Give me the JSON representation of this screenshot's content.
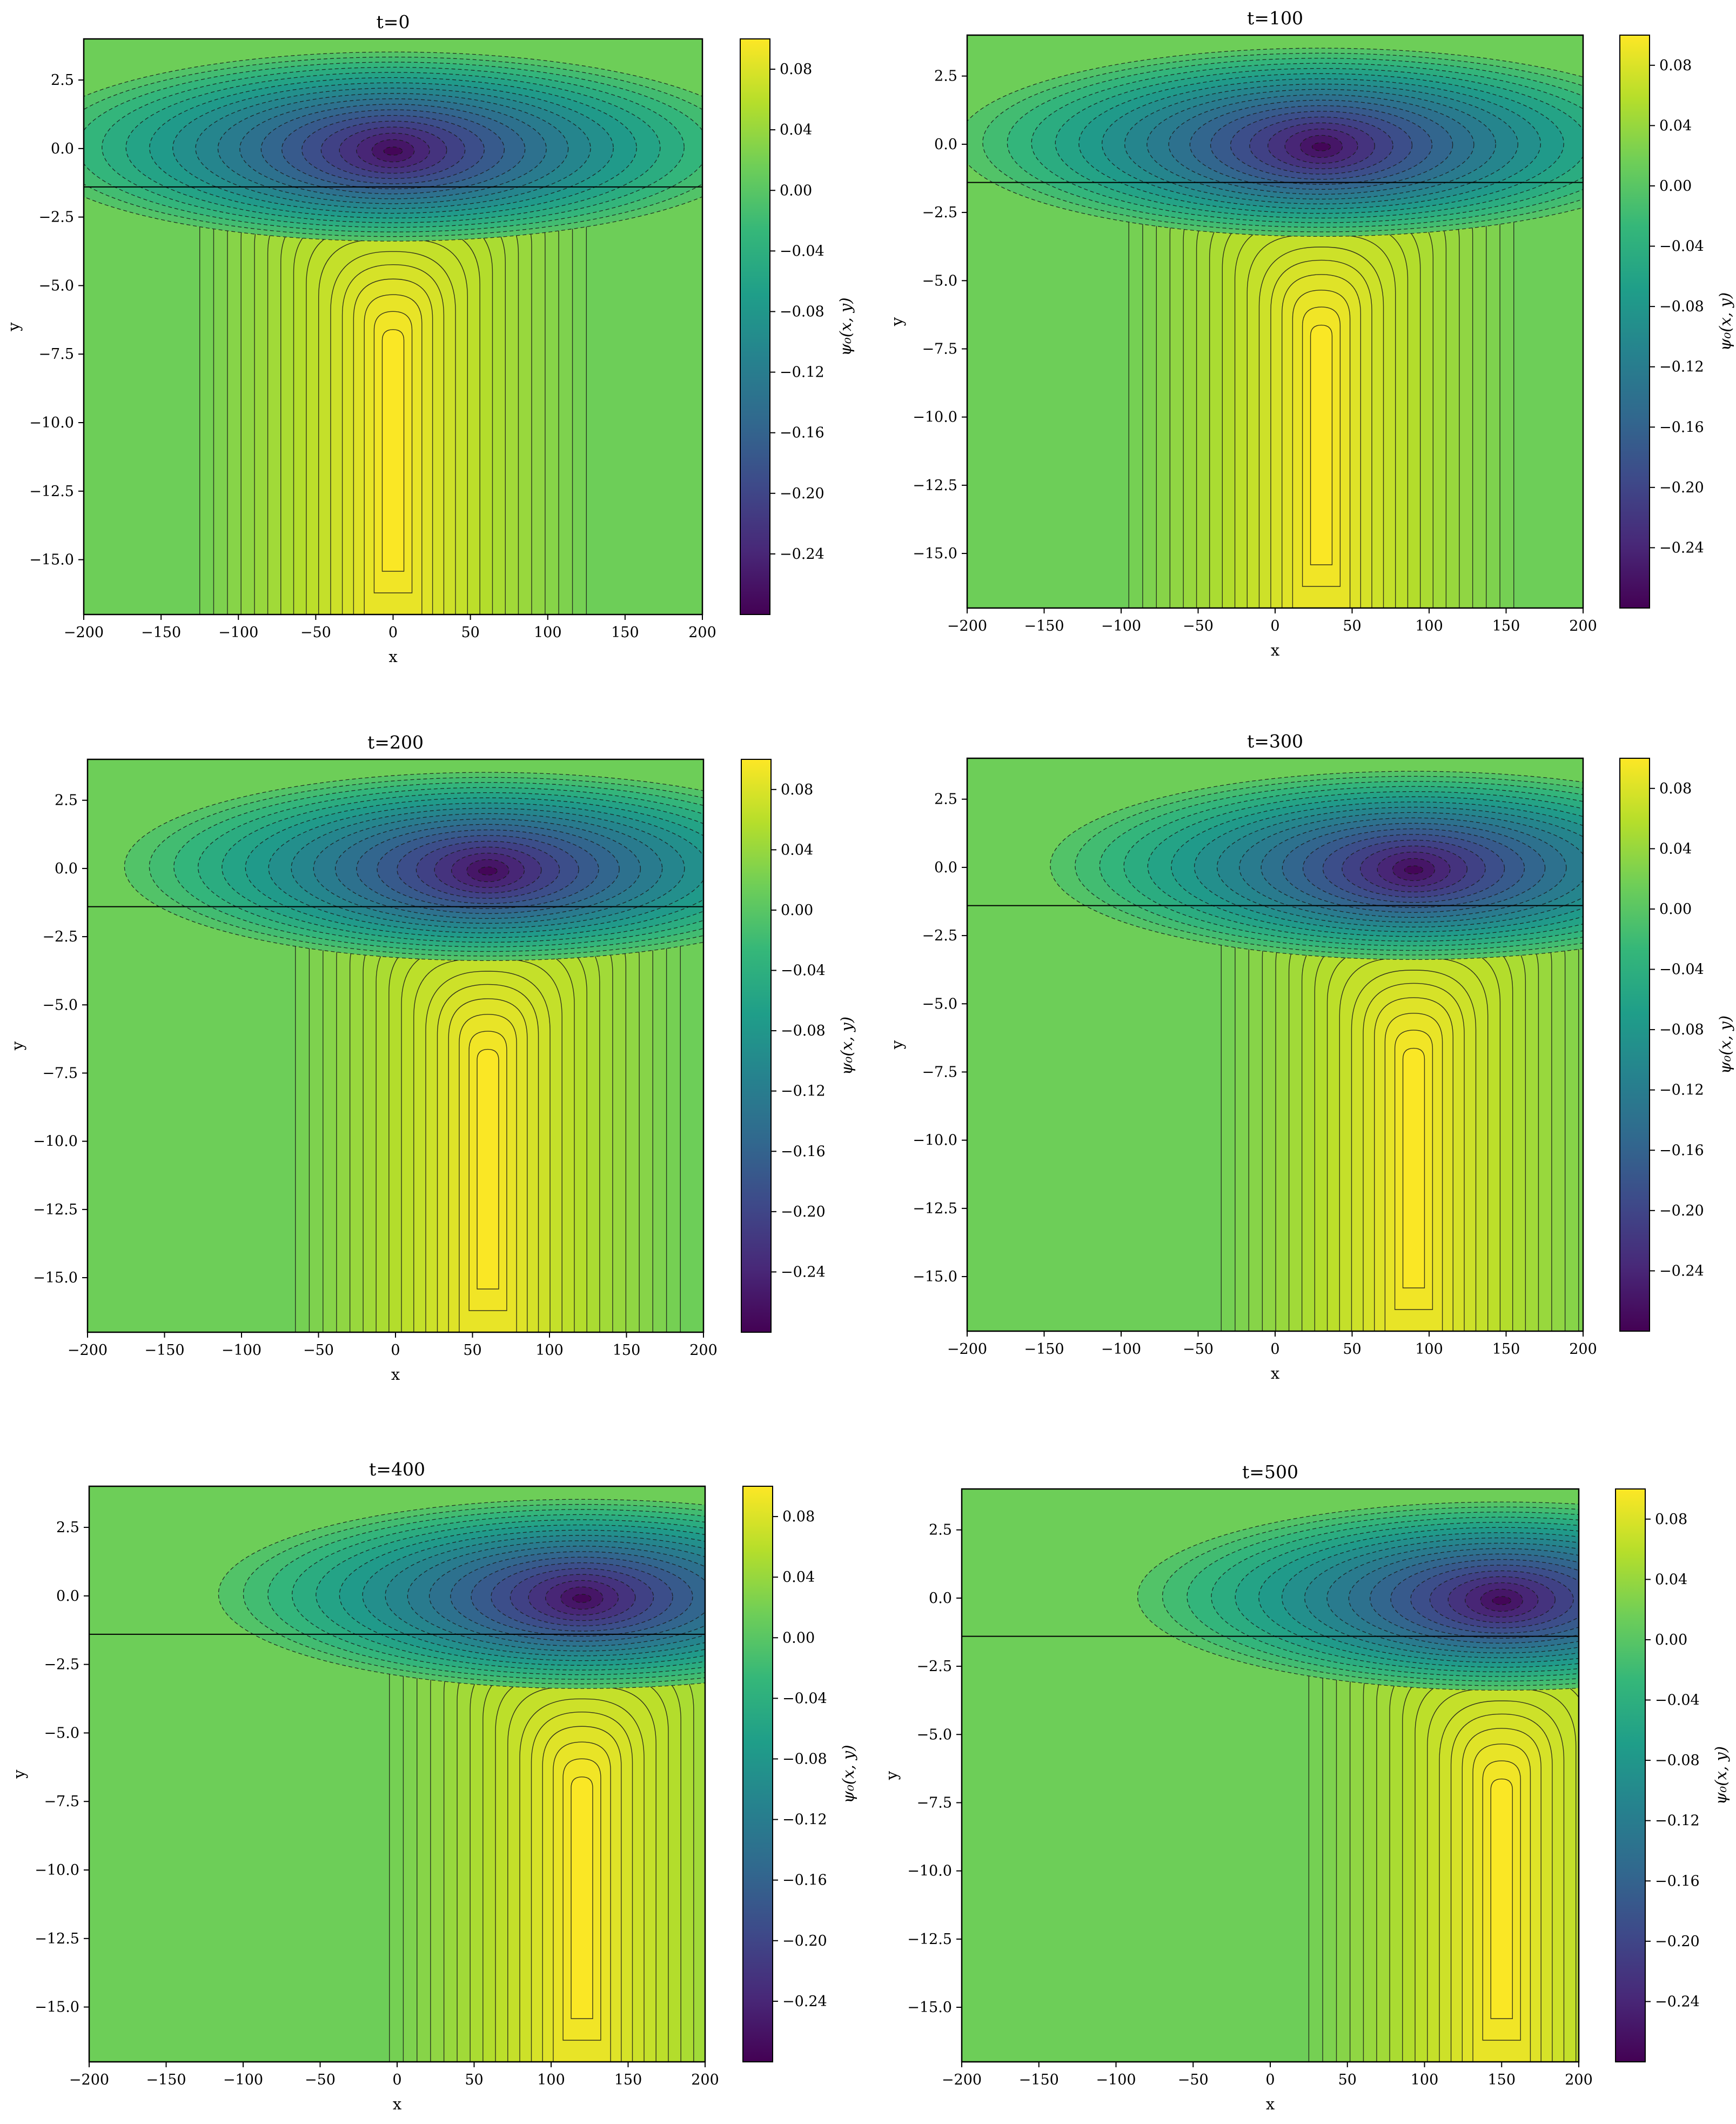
{
  "chart_data": [
    {
      "type": "heatmap",
      "title": "t=0",
      "xlabel": "x",
      "ylabel": "y",
      "xlim": [
        -200,
        200
      ],
      "ylim": [
        -17,
        4
      ],
      "xticks": [
        -200,
        -150,
        -100,
        -50,
        0,
        50,
        100,
        150,
        200
      ],
      "yticks": [
        2.5,
        0.0,
        -2.5,
        -5.0,
        -7.5,
        -10.0,
        -12.5,
        -15.0
      ],
      "center_x": 0,
      "interface_y": -1.4,
      "colorbar": {
        "label": "ψ₀(x, y)",
        "range": [
          -0.28,
          0.1
        ],
        "ticks": [
          0.08,
          0.04,
          0.0,
          -0.04,
          -0.08,
          -0.12,
          -0.16,
          -0.2,
          -0.24
        ]
      }
    },
    {
      "type": "heatmap",
      "title": "t=100",
      "xlabel": "x",
      "ylabel": "y",
      "xlim": [
        -200,
        200
      ],
      "ylim": [
        -17,
        4
      ],
      "xticks": [
        -200,
        -150,
        -100,
        -50,
        0,
        50,
        100,
        150,
        200
      ],
      "yticks": [
        2.5,
        0.0,
        -2.5,
        -5.0,
        -7.5,
        -10.0,
        -12.5,
        -15.0
      ],
      "center_x": 30,
      "interface_y": -1.4,
      "colorbar": {
        "label": "ψ₀(x, y)",
        "range": [
          -0.28,
          0.1
        ],
        "ticks": [
          0.08,
          0.04,
          0.0,
          -0.04,
          -0.08,
          -0.12,
          -0.16,
          -0.2,
          -0.24
        ]
      }
    },
    {
      "type": "heatmap",
      "title": "t=200",
      "xlabel": "x",
      "ylabel": "y",
      "xlim": [
        -200,
        200
      ],
      "ylim": [
        -17,
        4
      ],
      "xticks": [
        -200,
        -150,
        -100,
        -50,
        0,
        50,
        100,
        150,
        200
      ],
      "yticks": [
        2.5,
        0.0,
        -2.5,
        -5.0,
        -7.5,
        -10.0,
        -12.5,
        -15.0
      ],
      "center_x": 60,
      "interface_y": -1.4,
      "colorbar": {
        "label": "ψ₀(x, y)",
        "range": [
          -0.28,
          0.1
        ],
        "ticks": [
          0.08,
          0.04,
          0.0,
          -0.04,
          -0.08,
          -0.12,
          -0.16,
          -0.2,
          -0.24
        ]
      }
    },
    {
      "type": "heatmap",
      "title": "t=300",
      "xlabel": "x",
      "ylabel": "y",
      "xlim": [
        -200,
        200
      ],
      "ylim": [
        -17,
        4
      ],
      "xticks": [
        -200,
        -150,
        -100,
        -50,
        0,
        50,
        100,
        150,
        200
      ],
      "yticks": [
        2.5,
        0.0,
        -2.5,
        -5.0,
        -7.5,
        -10.0,
        -12.5,
        -15.0
      ],
      "center_x": 90,
      "interface_y": -1.4,
      "colorbar": {
        "label": "ψ₀(x, y)",
        "range": [
          -0.28,
          0.1
        ],
        "ticks": [
          0.08,
          0.04,
          0.0,
          -0.04,
          -0.08,
          -0.12,
          -0.16,
          -0.2,
          -0.24
        ]
      }
    },
    {
      "type": "heatmap",
      "title": "t=400",
      "xlabel": "x",
      "ylabel": "y",
      "xlim": [
        -200,
        200
      ],
      "ylim": [
        -17,
        4
      ],
      "xticks": [
        -200,
        -150,
        -100,
        -50,
        0,
        50,
        100,
        150,
        200
      ],
      "yticks": [
        2.5,
        0.0,
        -2.5,
        -5.0,
        -7.5,
        -10.0,
        -12.5,
        -15.0
      ],
      "center_x": 120,
      "interface_y": -1.4,
      "colorbar": {
        "label": "ψ₀(x, y)",
        "range": [
          -0.28,
          0.1
        ],
        "ticks": [
          0.08,
          0.04,
          0.0,
          -0.04,
          -0.08,
          -0.12,
          -0.16,
          -0.2,
          -0.24
        ]
      }
    },
    {
      "type": "heatmap",
      "title": "t=500",
      "xlabel": "x",
      "ylabel": "y",
      "xlim": [
        -200,
        200
      ],
      "ylim": [
        -17,
        4
      ],
      "xticks": [
        -200,
        -150,
        -100,
        -50,
        0,
        50,
        100,
        150,
        200
      ],
      "yticks": [
        2.5,
        0.0,
        -2.5,
        -5.0,
        -7.5,
        -10.0,
        -12.5,
        -15.0
      ],
      "center_x": 150,
      "interface_y": -1.4,
      "colorbar": {
        "label": "ψ₀(x, y)",
        "range": [
          -0.28,
          0.1
        ],
        "ticks": [
          0.08,
          0.04,
          0.0,
          -0.04,
          -0.08,
          -0.12,
          -0.16,
          -0.2,
          -0.24
        ]
      }
    }
  ],
  "colors": {
    "viridis": [
      "#440154",
      "#482878",
      "#3e4989",
      "#31688e",
      "#26828e",
      "#1f9e89",
      "#35b779",
      "#6ece58",
      "#b5de2b",
      "#fde725"
    ],
    "contour_line": "#1a1a1a",
    "frame": "#000000"
  }
}
